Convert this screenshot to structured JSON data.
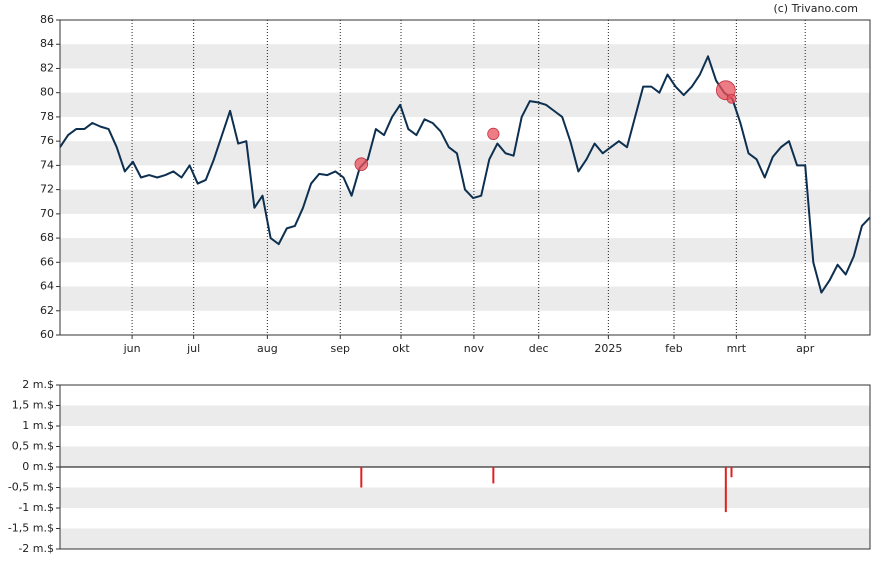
{
  "credit": "(c) Trivano.com",
  "chart_data": [
    {
      "type": "line",
      "color": "#0d3050",
      "band_color": "#ebebeb",
      "xlim": [
        0,
        100
      ],
      "xticks": [
        {
          "value": 8.9,
          "label": "jun"
        },
        {
          "value": 16.5,
          "label": "jul"
        },
        {
          "value": 25.6,
          "label": "aug"
        },
        {
          "value": 34.6,
          "label": "sep"
        },
        {
          "value": 42.1,
          "label": "okt"
        },
        {
          "value": 51.1,
          "label": "nov"
        },
        {
          "value": 59.1,
          "label": "dec"
        },
        {
          "value": 67.7,
          "label": "2025"
        },
        {
          "value": 75.8,
          "label": "feb"
        },
        {
          "value": 83.5,
          "label": "mrt"
        },
        {
          "value": 92.0,
          "label": "apr"
        }
      ],
      "ylim": [
        60,
        86
      ],
      "yticks": [
        60,
        62,
        64,
        66,
        68,
        70,
        72,
        74,
        76,
        78,
        80,
        82,
        84,
        86
      ],
      "values": [
        75.5,
        76.5,
        77,
        77,
        77.5,
        77.2,
        77,
        75.5,
        73.5,
        74.3,
        73,
        73.2,
        73,
        73.2,
        73.5,
        73,
        74,
        72.5,
        72.8,
        74.5,
        76.5,
        78.5,
        75.8,
        76,
        70.5,
        71.5,
        68,
        67.5,
        68.8,
        69,
        70.5,
        72.5,
        73.3,
        73.2,
        73.5,
        73,
        71.5,
        73.8,
        74.5,
        77,
        76.5,
        78,
        79,
        77,
        76.5,
        77.8,
        77.5,
        76.8,
        75.5,
        75,
        72,
        71.3,
        71.5,
        74.5,
        75.8,
        75,
        74.8,
        78,
        79.3,
        79.2,
        79,
        78.5,
        78,
        76,
        73.5,
        74.5,
        75.8,
        75,
        75.5,
        76,
        75.5,
        78,
        80.5,
        80.5,
        80,
        81.5,
        80.5,
        79.8,
        80.5,
        81.5,
        83,
        81,
        80,
        79.5,
        77.5,
        75,
        74.5,
        73,
        74.7,
        75.5,
        76,
        74,
        74,
        66,
        63.5,
        64.5,
        65.8,
        65,
        66.5,
        69,
        69.7
      ],
      "trades": {
        "color": "#e8505b",
        "x": [
          37.2,
          53.5,
          82.2,
          82.9
        ],
        "price": [
          74.1,
          76.6,
          80.2,
          79.5
        ],
        "values": [
          -0.5,
          -0.4,
          -1.1,
          -0.25
        ]
      }
    },
    {
      "type": "bar",
      "color": "#e02020",
      "band_color": "#ebebeb",
      "xlim": [
        0,
        100
      ],
      "ylim": [
        -2,
        2
      ],
      "yticks": [
        {
          "value": -2,
          "label": "-2 m.$"
        },
        {
          "value": -1.5,
          "label": "-1,5 m.$"
        },
        {
          "value": -1,
          "label": "-1 m.$"
        },
        {
          "value": -0.5,
          "label": "-0,5 m.$"
        },
        {
          "value": 0,
          "label": "0 m.$"
        },
        {
          "value": 0.5,
          "label": "0,5 m.$"
        },
        {
          "value": 1,
          "label": "1 m.$"
        },
        {
          "value": 1.5,
          "label": "1,5 m.$"
        },
        {
          "value": 2,
          "label": "2 m.$"
        }
      ],
      "x": [
        37.2,
        53.5,
        82.2,
        82.9
      ],
      "values": [
        -0.5,
        -0.4,
        -1.1,
        -0.25
      ]
    }
  ]
}
